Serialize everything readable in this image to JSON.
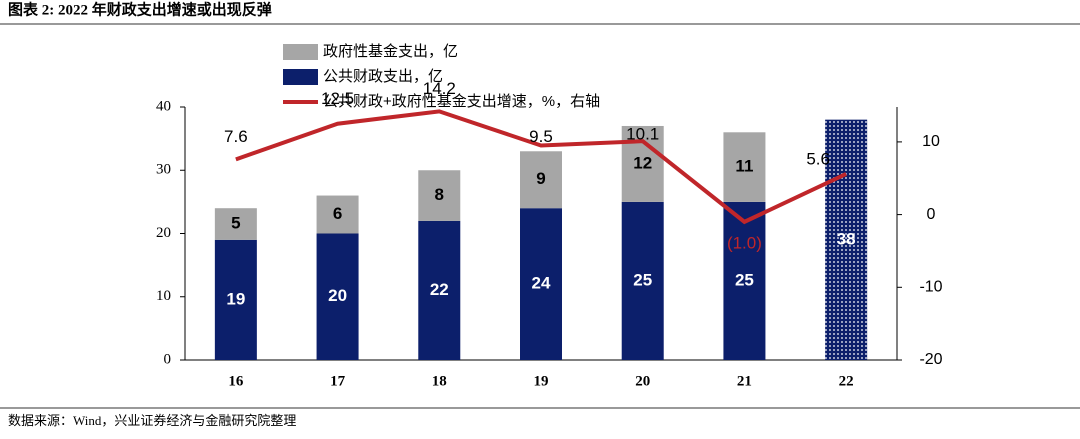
{
  "chart_data": {
    "type": "bar_line",
    "title": "图表 2:  2022 年财政支出增速或出现反弹",
    "source": "数据来源：Wind，兴业证券经济与金融研究院整理",
    "categories": [
      "16",
      "17",
      "18",
      "19",
      "20",
      "21",
      "22"
    ],
    "series": [
      {
        "name": "公共财政支出，亿",
        "color": "#0c1f6b",
        "values": [
          19,
          20,
          22,
          24,
          25,
          25,
          38
        ],
        "patterned": [
          false,
          false,
          false,
          false,
          false,
          false,
          true
        ]
      },
      {
        "name": "政府性基金支出，亿",
        "color": "#a6a6a6",
        "values": [
          5,
          6,
          8,
          9,
          12,
          11,
          null
        ]
      },
      {
        "name": "公共财政+政府性基金支出增速，%，右轴",
        "color": "#c0262a",
        "axis": "y2",
        "type": "line",
        "values": [
          7.6,
          12.5,
          14.2,
          9.5,
          10.1,
          -1.0,
          5.6
        ],
        "value_labels": [
          "7.6",
          "12.5",
          "14.2",
          "9.5",
          "10.1",
          "(1.0)",
          "5.6"
        ]
      }
    ],
    "ylim": [
      0,
      40
    ],
    "yticks": [
      0,
      10,
      20,
      30,
      40
    ],
    "y2lim": [
      -20,
      14.8
    ],
    "y2ticks": [
      -20,
      -10,
      0,
      10
    ]
  }
}
